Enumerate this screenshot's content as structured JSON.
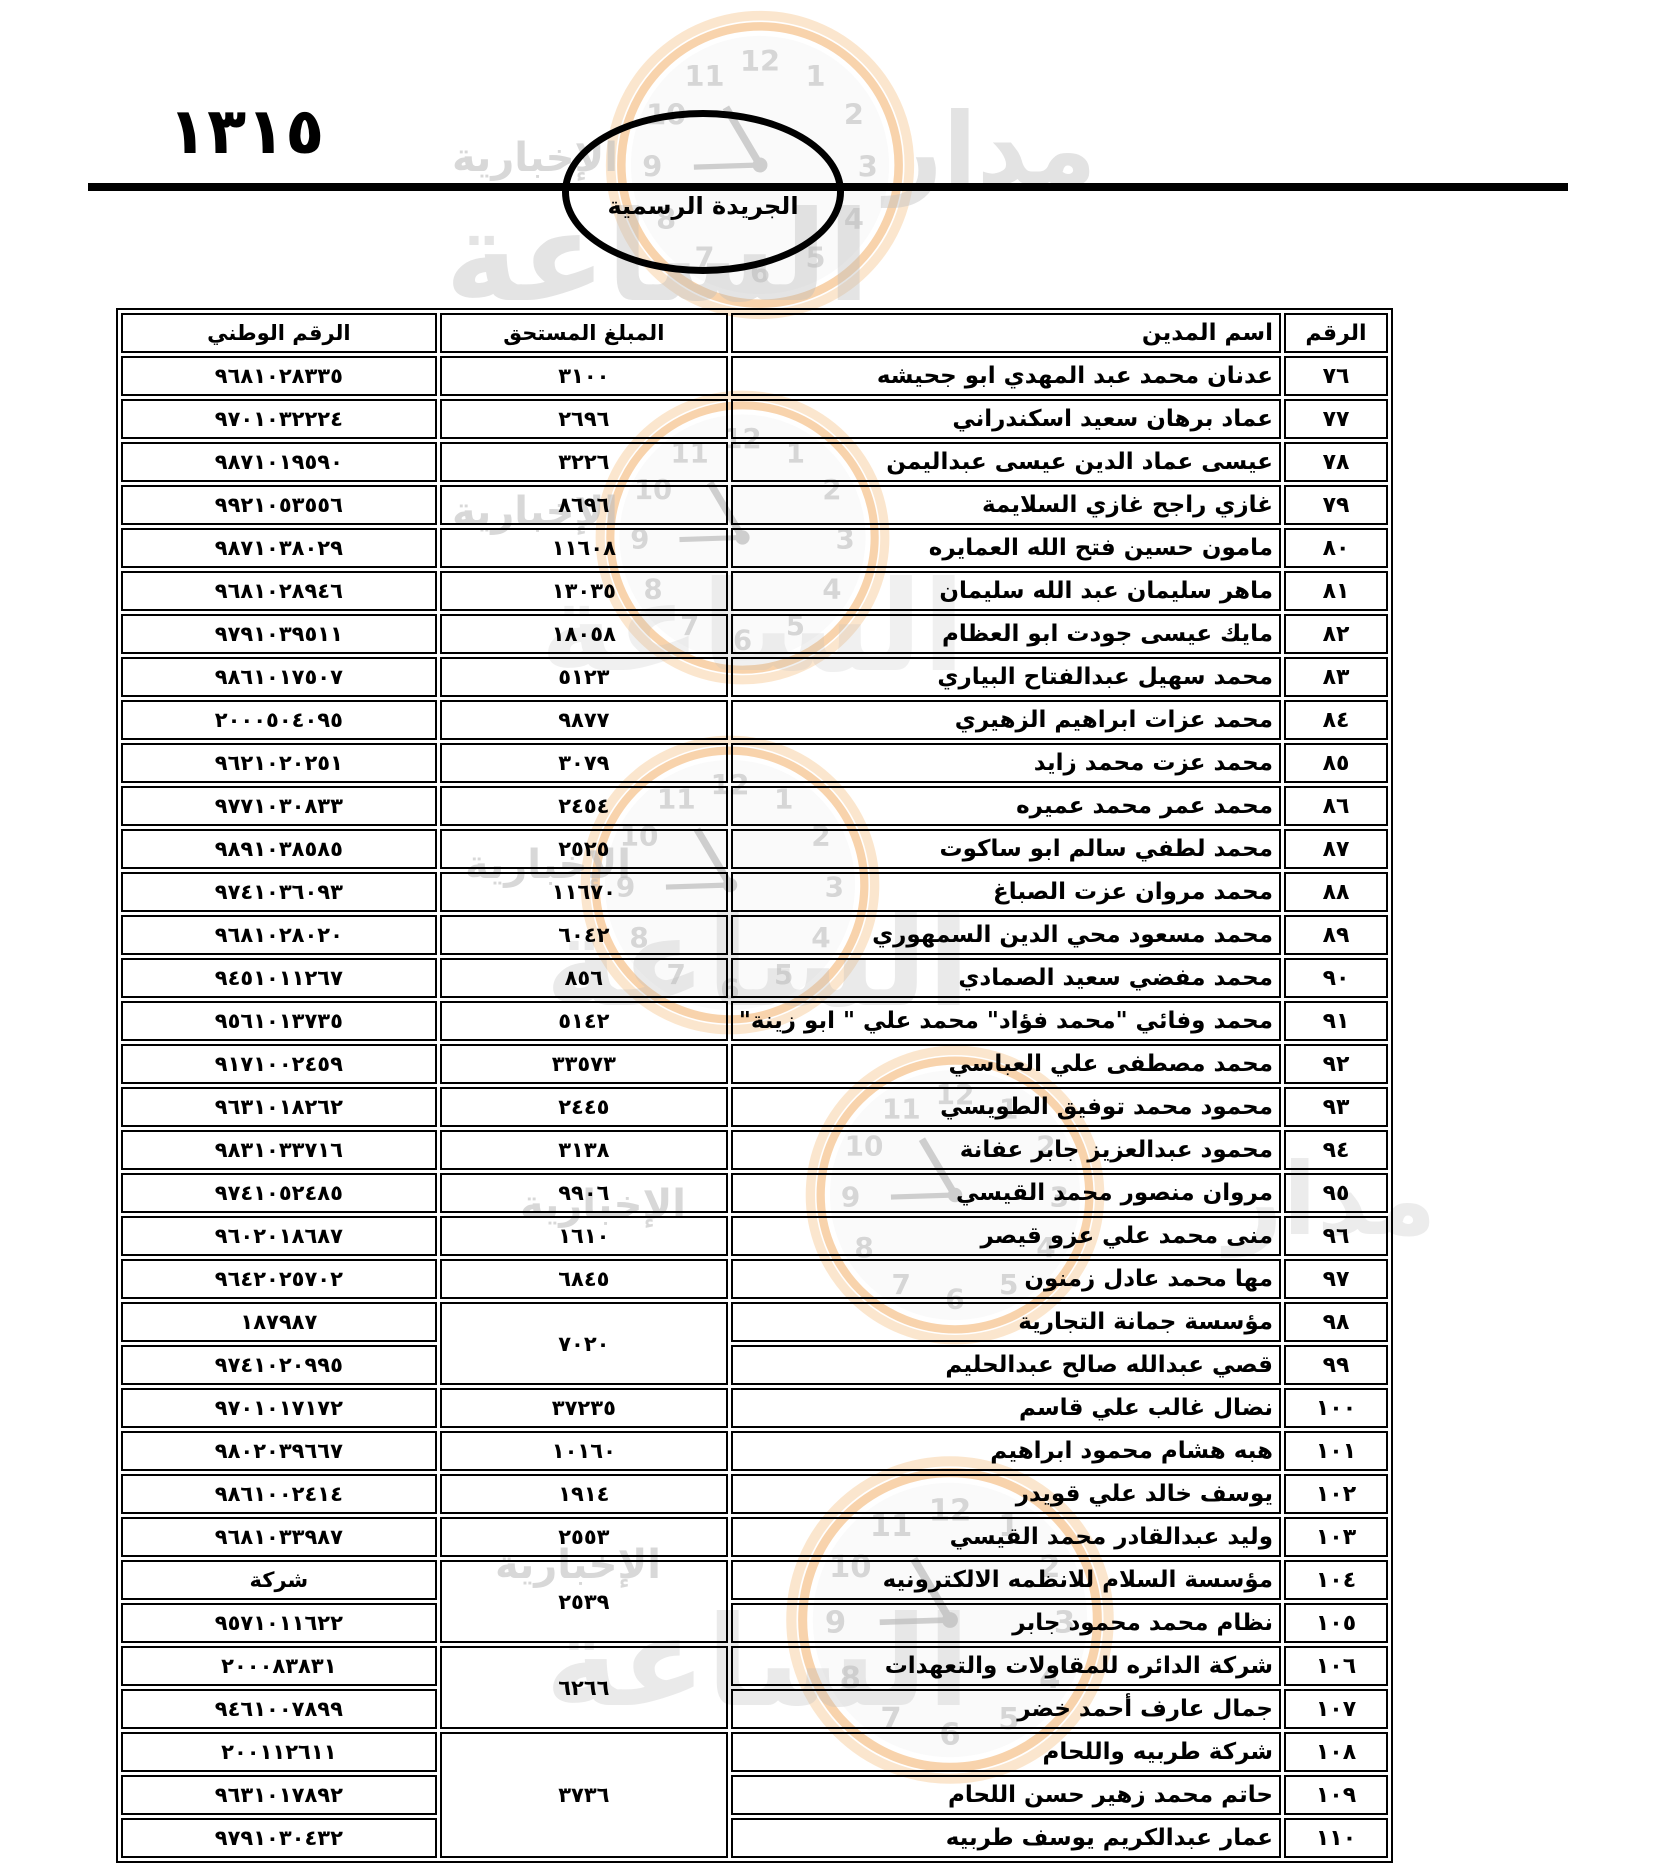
{
  "page": {
    "page_number": "١٣١٥",
    "gazette_title": "الجريدة الرسمية"
  },
  "watermark": {
    "brand_top": "مدار",
    "brand_big": "الساعة",
    "brand_sub": "الإخبارية",
    "ring_color": "#f2a95c"
  },
  "table": {
    "headers": {
      "row_no": "الرقم",
      "debtor_name": "اسم المدين",
      "amount_due": "المبلغ المستحق",
      "national_no": "الرقم الوطني"
    },
    "rows": [
      {
        "no": "٧٦",
        "name": "عدنان محمد عبد المهدي ابو جحيشه",
        "amount": "٣١٠٠",
        "span": 1,
        "national": "٩٦٨١٠٢٨٣٣٥"
      },
      {
        "no": "٧٧",
        "name": "عماد برهان سعيد اسكندراني",
        "amount": "٢٦٩٦",
        "span": 1,
        "national": "٩٧٠١٠٣٢٢٢٤"
      },
      {
        "no": "٧٨",
        "name": "عيسى عماد الدين عيسى عبداليمن",
        "amount": "٣٢٢٦",
        "span": 1,
        "national": "٩٨٧١٠١٩٥٩٠"
      },
      {
        "no": "٧٩",
        "name": "غازي راجح غازي السلايمة",
        "amount": "٨٦٩٦",
        "span": 1,
        "national": "٩٩٢١٠٥٣٥٥٦"
      },
      {
        "no": "٨٠",
        "name": "مامون حسين فتح الله العمايره",
        "amount": "١١٦٠٨",
        "span": 1,
        "national": "٩٨٧١٠٣٨٠٢٩"
      },
      {
        "no": "٨١",
        "name": "ماهر سليمان عبد الله سليمان",
        "amount": "١٣٠٣٥",
        "span": 1,
        "national": "٩٦٨١٠٢٨٩٤٦"
      },
      {
        "no": "٨٢",
        "name": "مايك عيسى جودت ابو العظام",
        "amount": "١٨٠٥٨",
        "span": 1,
        "national": "٩٧٩١٠٣٩٥١١"
      },
      {
        "no": "٨٣",
        "name": "محمد سهيل عبدالفتاح البياري",
        "amount": "٥١٢٣",
        "span": 1,
        "national": "٩٨٦١٠١٧٥٠٧"
      },
      {
        "no": "٨٤",
        "name": "محمد عزات ابراهيم الزهيري",
        "amount": "٩٨٧٧",
        "span": 1,
        "national": "٢٠٠٠٥٠٤٠٩٥"
      },
      {
        "no": "٨٥",
        "name": "محمد عزت محمد زايد",
        "amount": "٣٠٧٩",
        "span": 1,
        "national": "٩٦٢١٠٢٠٢٥١"
      },
      {
        "no": "٨٦",
        "name": "محمد عمر محمد عميره",
        "amount": "٢٤٥٤",
        "span": 1,
        "national": "٩٧٧١٠٣٠٨٣٣"
      },
      {
        "no": "٨٧",
        "name": "محمد لطفي سالم ابو ساكوت",
        "amount": "٢٥٢٥",
        "span": 1,
        "national": "٩٨٩١٠٣٨٥٨٥"
      },
      {
        "no": "٨٨",
        "name": "محمد مروان عزت الصباغ",
        "amount": "١١٦٧٠",
        "span": 1,
        "national": "٩٧٤١٠٣٦٠٩٣"
      },
      {
        "no": "٨٩",
        "name": "محمد مسعود محي الدين السمهوري",
        "amount": "٦٠٤٢",
        "span": 1,
        "national": "٩٦٨١٠٢٨٠٢٠"
      },
      {
        "no": "٩٠",
        "name": "محمد مفضي سعيد الصمادي",
        "amount": "٨٥٦",
        "span": 1,
        "national": "٩٤٥١٠١١٢٦٧"
      },
      {
        "no": "٩١",
        "name": "محمد وفائي \"محمد فؤاد\"  محمد علي \" ابو زينة\"",
        "amount": "٥١٤٢",
        "span": 1,
        "national": "٩٥٦١٠١٣٧٣٥"
      },
      {
        "no": "٩٢",
        "name": "محمد مصطفى علي العباسي",
        "amount": "٣٣٥٧٣",
        "span": 1,
        "national": "٩١٧١٠٠٢٤٥٩"
      },
      {
        "no": "٩٣",
        "name": "محمود محمد توفيق الطويسي",
        "amount": "٢٤٤٥",
        "span": 1,
        "national": "٩٦٣١٠١٨٢٦٢"
      },
      {
        "no": "٩٤",
        "name": "محمود عبدالعزيز جابر عفانة",
        "amount": "٣١٣٨",
        "span": 1,
        "national": "٩٨٣١٠٣٣٧١٦"
      },
      {
        "no": "٩٥",
        "name": "مروان منصور محمد القيسي",
        "amount": "٩٩٠٦",
        "span": 1,
        "national": "٩٧٤١٠٥٢٤٨٥"
      },
      {
        "no": "٩٦",
        "name": "منى محمد علي عزو قيصر",
        "amount": "١٦١٠",
        "span": 1,
        "national": "٩٦٠٢٠١٨٦٨٧"
      },
      {
        "no": "٩٧",
        "name": "مها محمد عادل زمنون",
        "amount": "٦٨٤٥",
        "span": 1,
        "national": "٩٦٤٢٠٢٥٧٠٢"
      },
      {
        "no": "٩٨",
        "name": "مؤسسة جمانة التجارية",
        "amount": "٧٠٢٠",
        "span": 2,
        "national": "١٨٧٩٨٧"
      },
      {
        "no": "٩٩",
        "name": "قصي عبدالله صالح عبدالحليم",
        "amount": null,
        "national": "٩٧٤١٠٢٠٩٩٥"
      },
      {
        "no": "١٠٠",
        "name": "نضال غالب علي قاسم",
        "amount": "٣٧٢٣٥",
        "span": 1,
        "national": "٩٧٠١٠١٧١٧٢"
      },
      {
        "no": "١٠١",
        "name": "هبه هشام محمود ابراهيم",
        "amount": "١٠١٦٠",
        "span": 1,
        "national": "٩٨٠٢٠٣٩٦٦٧"
      },
      {
        "no": "١٠٢",
        "name": "يوسف خالد علي قويدر",
        "amount": "١٩١٤",
        "span": 1,
        "national": "٩٨٦١٠٠٢٤١٤"
      },
      {
        "no": "١٠٣",
        "name": "وليد عبدالقادر محمد القيسي",
        "amount": "٢٥٥٣",
        "span": 1,
        "national": "٩٦٨١٠٣٣٩٨٧"
      },
      {
        "no": "١٠٤",
        "name": "مؤسسة السلام للانظمه الالكترونيه",
        "amount": "٢٥٣٩",
        "span": 2,
        "national": "شركة"
      },
      {
        "no": "١٠٥",
        "name": "نظام محمد محمود جابر",
        "amount": null,
        "national": "٩٥٧١٠١١٦٢٢"
      },
      {
        "no": "١٠٦",
        "name": "شركة الدائره للمقاولات والتعهدات",
        "amount": "٦٢٦٦",
        "span": 2,
        "national": "٢٠٠٠٨٣٨٣١"
      },
      {
        "no": "١٠٧",
        "name": "جمال عارف أحمد خضر",
        "amount": null,
        "national": "٩٤٦١٠٠٧٨٩٩"
      },
      {
        "no": "١٠٨",
        "name": "شركة طربيه واللحام",
        "amount": "٣٧٣٦",
        "span": 3,
        "national": "٢٠٠١١٢٦١١"
      },
      {
        "no": "١٠٩",
        "name": "حاتم محمد زهير حسن اللحام",
        "amount": null,
        "national": "٩٦٣١٠١٧٨٩٢"
      },
      {
        "no": "١١٠",
        "name": "عمار عبدالكريم يوسف طربيه",
        "amount": null,
        "national": "٩٧٩١٠٣٠٤٣٢"
      }
    ]
  }
}
